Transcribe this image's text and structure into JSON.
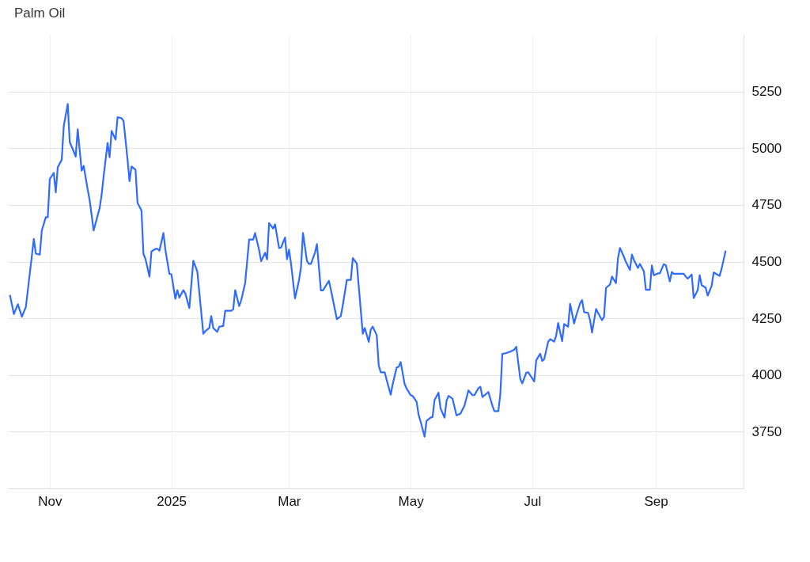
{
  "chart_data": {
    "type": "line",
    "title": "Palm Oil",
    "x": [
      "2024-10-12",
      "2024-10-14",
      "2024-10-16",
      "2024-10-18",
      "2024-10-20",
      "2024-10-24",
      "2024-10-25",
      "2024-10-27",
      "2024-10-28",
      "2024-10-30",
      "2024-10-31",
      "2024-11-01",
      "2024-11-03",
      "2024-11-04",
      "2024-11-05",
      "2024-11-07",
      "2024-11-08",
      "2024-11-10",
      "2024-11-11",
      "2024-11-13",
      "2024-11-14",
      "2024-11-15",
      "2024-11-17",
      "2024-11-18",
      "2024-11-20",
      "2024-11-21",
      "2024-11-23",
      "2024-11-26",
      "2024-11-27",
      "2024-11-28",
      "2024-11-30",
      "2024-12-01",
      "2024-12-02",
      "2024-12-04",
      "2024-12-05",
      "2024-12-07",
      "2024-12-08",
      "2024-12-10",
      "2024-12-11",
      "2024-12-12",
      "2024-12-14",
      "2024-12-15",
      "2024-12-17",
      "2024-12-18",
      "2024-12-19",
      "2024-12-21",
      "2024-12-22",
      "2024-12-24",
      "2024-12-25",
      "2024-12-26",
      "2024-12-28",
      "2024-12-29",
      "2024-12-31",
      "2025-01-01",
      "2025-01-03",
      "2025-01-04",
      "2025-01-05",
      "2025-01-07",
      "2025-01-08",
      "2025-01-10",
      "2025-01-12",
      "2025-01-14",
      "2025-01-15",
      "2025-01-17",
      "2025-01-18",
      "2025-01-20",
      "2025-01-21",
      "2025-01-22",
      "2025-01-24",
      "2025-01-25",
      "2025-01-27",
      "2025-01-28",
      "2025-01-31",
      "2025-02-01",
      "2025-02-02",
      "2025-02-04",
      "2025-02-05",
      "2025-02-07",
      "2025-02-09",
      "2025-02-11",
      "2025-02-12",
      "2025-02-14",
      "2025-02-15",
      "2025-02-17",
      "2025-02-18",
      "2025-02-19",
      "2025-02-21",
      "2025-02-22",
      "2025-02-24",
      "2025-02-25",
      "2025-02-27",
      "2025-02-28",
      "2025-03-01",
      "2025-03-02",
      "2025-03-04",
      "2025-03-06",
      "2025-03-07",
      "2025-03-08",
      "2025-03-10",
      "2025-03-11",
      "2025-03-12",
      "2025-03-14",
      "2025-03-15",
      "2025-03-17",
      "2025-03-18",
      "2025-03-21",
      "2025-03-22",
      "2025-03-25",
      "2025-03-27",
      "2025-03-28",
      "2025-03-30",
      "2025-04-01",
      "2025-04-02",
      "2025-04-04",
      "2025-04-07",
      "2025-04-08",
      "2025-04-10",
      "2025-04-11",
      "2025-04-12",
      "2025-04-14",
      "2025-04-15",
      "2025-04-16",
      "2025-04-18",
      "2025-04-19",
      "2025-04-21",
      "2025-04-22",
      "2025-04-24",
      "2025-04-25",
      "2025-04-26",
      "2025-04-28",
      "2025-04-29",
      "2025-05-01",
      "2025-05-02",
      "2025-05-04",
      "2025-05-05",
      "2025-05-06",
      "2025-05-08",
      "2025-05-09",
      "2025-05-11",
      "2025-05-12",
      "2025-05-13",
      "2025-05-15",
      "2025-05-16",
      "2025-05-18",
      "2025-05-19",
      "2025-05-20",
      "2025-05-22",
      "2025-05-24",
      "2025-05-26",
      "2025-05-28",
      "2025-05-30",
      "2025-06-01",
      "2025-06-02",
      "2025-06-04",
      "2025-06-05",
      "2025-06-06",
      "2025-06-09",
      "2025-06-11",
      "2025-06-12",
      "2025-06-14",
      "2025-06-15",
      "2025-06-16",
      "2025-06-18",
      "2025-06-20",
      "2025-06-22",
      "2025-06-23",
      "2025-06-25",
      "2025-06-26",
      "2025-06-28",
      "2025-06-29",
      "2025-07-02",
      "2025-07-03",
      "2025-07-05",
      "2025-07-06",
      "2025-07-07",
      "2025-07-09",
      "2025-07-10",
      "2025-07-12",
      "2025-07-13",
      "2025-07-14",
      "2025-07-16",
      "2025-07-17",
      "2025-07-19",
      "2025-07-20",
      "2025-07-22",
      "2025-07-23",
      "2025-07-25",
      "2025-07-26",
      "2025-07-27",
      "2025-07-29",
      "2025-07-30",
      "2025-07-31",
      "2025-08-02",
      "2025-08-03",
      "2025-08-05",
      "2025-08-06",
      "2025-08-07",
      "2025-08-09",
      "2025-08-10",
      "2025-08-12",
      "2025-08-13",
      "2025-08-14",
      "2025-08-16",
      "2025-08-17",
      "2025-08-19",
      "2025-08-20",
      "2025-08-21",
      "2025-08-23",
      "2025-08-24",
      "2025-08-26",
      "2025-08-27",
      "2025-08-29",
      "2025-08-30",
      "2025-08-31",
      "2025-09-02",
      "2025-09-03",
      "2025-09-05",
      "2025-09-06",
      "2025-09-08",
      "2025-09-09",
      "2025-09-10",
      "2025-09-15",
      "2025-09-16",
      "2025-09-17",
      "2025-09-19",
      "2025-09-20",
      "2025-09-22",
      "2025-09-23",
      "2025-09-24",
      "2025-09-26",
      "2025-09-27",
      "2025-09-29",
      "2025-09-30",
      "2025-10-03",
      "2025-10-04",
      "2025-10-06"
    ],
    "series": [
      {
        "color": "#2f6bff",
        "values": [
          4353,
          4269,
          4312,
          4257,
          4300,
          4600,
          4535,
          4531,
          4637,
          4696,
          4696,
          4864,
          4891,
          4806,
          4916,
          4949,
          5097,
          5195,
          5027,
          4986,
          4963,
          5083,
          4901,
          4922,
          4818,
          4771,
          4637,
          4736,
          4794,
          4876,
          5023,
          4960,
          5076,
          5038,
          5137,
          5132,
          5120,
          4951,
          4855,
          4919,
          4905,
          4759,
          4725,
          4533,
          4512,
          4434,
          4545,
          4556,
          4556,
          4548,
          4626,
          4551,
          4446,
          4444,
          4336,
          4374,
          4341,
          4374,
          4359,
          4295,
          4504,
          4457,
          4364,
          4182,
          4193,
          4207,
          4260,
          4207,
          4190,
          4213,
          4216,
          4283,
          4283,
          4289,
          4374,
          4304,
          4329,
          4405,
          4597,
          4597,
          4626,
          4551,
          4502,
          4539,
          4510,
          4670,
          4646,
          4664,
          4560,
          4562,
          4606,
          4510,
          4553,
          4492,
          4338,
          4417,
          4475,
          4626,
          4502,
          4490,
          4490,
          4539,
          4577,
          4373,
          4373,
          4415,
          4376,
          4246,
          4260,
          4309,
          4419,
          4419,
          4515,
          4492,
          4182,
          4207,
          4146,
          4200,
          4213,
          4175,
          4042,
          4012,
          4012,
          3977,
          3913,
          3960,
          4033,
          4036,
          4057,
          3960,
          3940,
          3911,
          3908,
          3882,
          3824,
          3795,
          3728,
          3798,
          3812,
          3815,
          3890,
          3922,
          3853,
          3812,
          3886,
          3908,
          3896,
          3822,
          3830,
          3865,
          3932,
          3911,
          3911,
          3942,
          3948,
          3903,
          3925,
          3865,
          3841,
          3841,
          3917,
          4093,
          4097,
          4103,
          4112,
          4124,
          3983,
          3963,
          4010,
          4012,
          3972,
          4065,
          4094,
          4062,
          4070,
          4147,
          4158,
          4147,
          4173,
          4229,
          4149,
          4225,
          4213,
          4314,
          4227,
          4260,
          4316,
          4330,
          4277,
          4274,
          4242,
          4187,
          4291,
          4274,
          4242,
          4256,
          4384,
          4399,
          4434,
          4405,
          4515,
          4560,
          4521,
          4498,
          4463,
          4531,
          4507,
          4472,
          4490,
          4457,
          4376,
          4376,
          4483,
          4440,
          4448,
          4448,
          4489,
          4484,
          4413,
          4454,
          4446,
          4446,
          4434,
          4425,
          4443,
          4339,
          4374,
          4440,
          4396,
          4385,
          4350,
          4393,
          4452,
          4437,
          4469,
          4548
        ]
      }
    ],
    "xlim": [
      "2024-10-11",
      "2025-10-15"
    ],
    "xticks": [
      {
        "value": "2024-11-01",
        "label": "Nov"
      },
      {
        "value": "2025-01-01",
        "label": "2025"
      },
      {
        "value": "2025-03-01",
        "label": "Mar"
      },
      {
        "value": "2025-05-01",
        "label": "May"
      },
      {
        "value": "2025-07-01",
        "label": "Jul"
      },
      {
        "value": "2025-09-01",
        "label": "Sep"
      }
    ],
    "ylim": [
      3500,
      5500
    ],
    "yticks": [
      3750,
      4000,
      4250,
      4500,
      4750,
      5000,
      5250
    ],
    "grid": true,
    "marker": "none",
    "line_style": "solid",
    "legend": false
  }
}
